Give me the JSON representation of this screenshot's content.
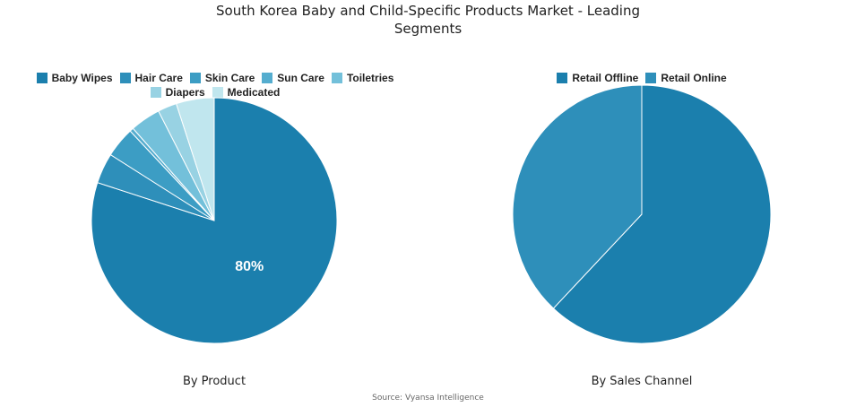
{
  "title": "South Korea Baby and Child-Specific Products  Market - Leading Segments",
  "source": "Source: Vyansa Intelligence",
  "chart_data": [
    {
      "type": "pie",
      "subtitle": "By Product",
      "legend": "top",
      "categories": [
        "Baby Wipes",
        "Hair Care",
        "Skin Care",
        "Sun Care",
        "Toiletries",
        "Diapers",
        "Medicated"
      ],
      "values": [
        80,
        4,
        4,
        0.5,
        4,
        2.5,
        5
      ],
      "colors": [
        "#1b7fad",
        "#2e8fba",
        "#3c9dc4",
        "#55adcf",
        "#73c0da",
        "#98d2e3",
        "#c0e6ee"
      ],
      "data_labels": [
        "80%",
        "",
        "",
        "",
        "",
        "",
        ""
      ]
    },
    {
      "type": "pie",
      "subtitle": "By Sales Channel",
      "legend": "top",
      "categories": [
        "Retail Offline",
        "Retail Online"
      ],
      "values": [
        62,
        38
      ],
      "colors": [
        "#1b7fad",
        "#2e8fba"
      ],
      "data_labels": [
        "",
        ""
      ]
    }
  ]
}
